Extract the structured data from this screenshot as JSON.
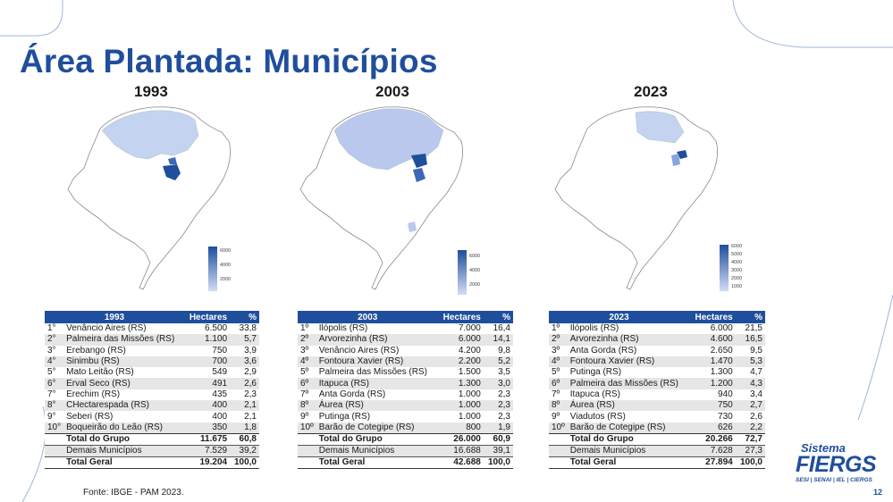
{
  "title": "Área Plantada: Municípios",
  "maps": [
    {
      "year": "1993",
      "legend_ticks": [
        "6000",
        "4000",
        "2000"
      ]
    },
    {
      "year": "2003",
      "legend_ticks": [
        "6000",
        "4000",
        "2000"
      ]
    },
    {
      "year": "2023",
      "legend_ticks": [
        "6000",
        "5000",
        "4000",
        "3000",
        "2000",
        "1000"
      ]
    }
  ],
  "tables": [
    {
      "header": {
        "year": "1993",
        "hectares": "Hectares",
        "pct": "%"
      },
      "rows": [
        {
          "pos": "1°",
          "name": "Venâncio Aires (RS)",
          "hectares": "6.500",
          "pct": "33,8"
        },
        {
          "pos": "2°",
          "name": "Palmeira das Missões (RS)",
          "hectares": "1.100",
          "pct": "5,7"
        },
        {
          "pos": "3°",
          "name": "Erebango (RS)",
          "hectares": "750",
          "pct": "3,9"
        },
        {
          "pos": "4°",
          "name": "Sinimbu (RS)",
          "hectares": "700",
          "pct": "3,6"
        },
        {
          "pos": "5°",
          "name": "Mato Leitão (RS)",
          "hectares": "549",
          "pct": "2,9"
        },
        {
          "pos": "6°",
          "name": "Erval Seco (RS)",
          "hectares": "491",
          "pct": "2,6"
        },
        {
          "pos": "7°",
          "name": "Erechim (RS)",
          "hectares": "435",
          "pct": "2,3"
        },
        {
          "pos": "8°",
          "name": "CHectarespada (RS)",
          "hectares": "400",
          "pct": "2,1"
        },
        {
          "pos": "9°",
          "name": "Seberi (RS)",
          "hectares": "400",
          "pct": "2,1"
        },
        {
          "pos": "10°",
          "name": "Boqueirão do Leão (RS)",
          "hectares": "350",
          "pct": "1,8"
        }
      ],
      "total_grupo": {
        "label": "Total do Grupo",
        "hectares": "11.675",
        "pct": "60,8"
      },
      "demais": {
        "label": "Demais Municípios",
        "hectares": "7.529",
        "pct": "39,2"
      },
      "total_geral": {
        "label": "Total Geral",
        "hectares": "19.204",
        "pct": "100,0"
      }
    },
    {
      "header": {
        "year": "2003",
        "hectares": "Hectares",
        "pct": "%"
      },
      "rows": [
        {
          "pos": "1º",
          "name": "Ilópolis (RS)",
          "hectares": "7.000",
          "pct": "16,4"
        },
        {
          "pos": "2º",
          "name": "Arvorezinha (RS)",
          "hectares": "6.000",
          "pct": "14,1"
        },
        {
          "pos": "3º",
          "name": "Venâncio Aires (RS)",
          "hectares": "4.200",
          "pct": "9,8"
        },
        {
          "pos": "4º",
          "name": "Fontoura Xavier (RS)",
          "hectares": "2.200",
          "pct": "5,2"
        },
        {
          "pos": "5º",
          "name": "Palmeira das Missões (RS)",
          "hectares": "1.500",
          "pct": "3,5"
        },
        {
          "pos": "6º",
          "name": "Itapuca (RS)",
          "hectares": "1.300",
          "pct": "3,0"
        },
        {
          "pos": "7º",
          "name": "Anta Gorda (RS)",
          "hectares": "1.000",
          "pct": "2,3"
        },
        {
          "pos": "8º",
          "name": "Áurea (RS)",
          "hectares": "1.000",
          "pct": "2,3"
        },
        {
          "pos": "9º",
          "name": "Putinga (RS)",
          "hectares": "1.000",
          "pct": "2,3"
        },
        {
          "pos": "10º",
          "name": "Barão de Cotegipe (RS)",
          "hectares": "800",
          "pct": "1,9"
        }
      ],
      "total_grupo": {
        "label": "Total do Grupo",
        "hectares": "26.000",
        "pct": "60,9"
      },
      "demais": {
        "label": "Demais Municípios",
        "hectares": "16.688",
        "pct": "39,1"
      },
      "total_geral": {
        "label": "Total Geral",
        "hectares": "42.688",
        "pct": "100,0"
      }
    },
    {
      "header": {
        "year": "2023",
        "hectares": "Hectares",
        "pct": "%"
      },
      "rows": [
        {
          "pos": "1º",
          "name": "Ilópolis (RS)",
          "hectares": "6.000",
          "pct": "21,5"
        },
        {
          "pos": "2º",
          "name": "Arvorezinha (RS)",
          "hectares": "4.600",
          "pct": "16,5"
        },
        {
          "pos": "3º",
          "name": "Anta Gorda (RS)",
          "hectares": "2.650",
          "pct": "9,5"
        },
        {
          "pos": "4º",
          "name": "Fontoura Xavier (RS)",
          "hectares": "1.470",
          "pct": "5,3"
        },
        {
          "pos": "5º",
          "name": "Putinga (RS)",
          "hectares": "1.300",
          "pct": "4,7"
        },
        {
          "pos": "6º",
          "name": "Palmeira das Missões (RS)",
          "hectares": "1.200",
          "pct": "4,3"
        },
        {
          "pos": "7º",
          "name": "Itapuca (RS)",
          "hectares": "940",
          "pct": "3,4"
        },
        {
          "pos": "8º",
          "name": "Áurea (RS)",
          "hectares": "750",
          "pct": "2,7"
        },
        {
          "pos": "9º",
          "name": "Viadutos (RS)",
          "hectares": "730",
          "pct": "2,6"
        },
        {
          "pos": "10º",
          "name": "Barão de Cotegipe (RS)",
          "hectares": "626",
          "pct": "2,2"
        }
      ],
      "total_grupo": {
        "label": "Total do Grupo",
        "hectares": "20.266",
        "pct": "72,7"
      },
      "demais": {
        "label": "Demais Municípios",
        "hectares": "7.628",
        "pct": "27,3"
      },
      "total_geral": {
        "label": "Total Geral",
        "hectares": "27.894",
        "pct": "100,0"
      }
    }
  ],
  "source": "Fonte: IBGE - PAM 2023.",
  "page_number": "12",
  "logo": {
    "line1": "Sistema",
    "line2": "FIERGS",
    "line3": "SESI | SENAI | IEL | CIERGS"
  },
  "colors": {
    "title": "#1f4e9c",
    "table_header": "#1f4e9c",
    "map_fill": "#b9c8ec",
    "map_dark": "#1f4e9c"
  }
}
